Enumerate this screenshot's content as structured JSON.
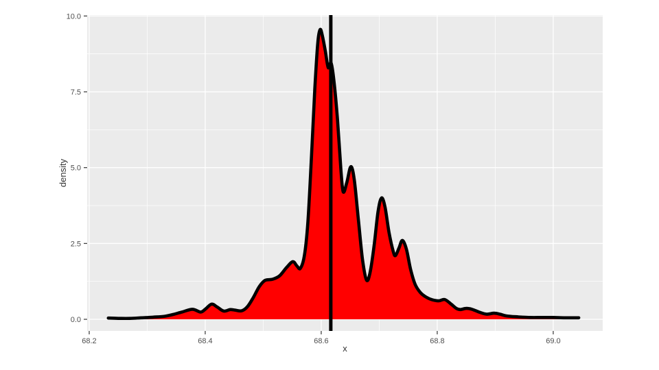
{
  "chart_data": {
    "type": "area",
    "subtype": "density-plot",
    "title": "",
    "xlabel": "x",
    "ylabel": "density",
    "legend": "none",
    "grid": "on",
    "x_ticks": {
      "values": [
        68.2,
        68.4,
        68.6,
        68.8,
        69.0
      ],
      "labels": [
        "68.2",
        "68.4",
        "68.6",
        "68.8",
        "69.0"
      ]
    },
    "y_ticks": {
      "values": [
        0.0,
        2.5,
        5.0,
        7.5,
        10.0
      ],
      "labels": [
        "0.0",
        "2.5",
        "5.0",
        "7.5",
        "10.0"
      ]
    },
    "x_minor": [
      68.3,
      68.5,
      68.7,
      68.9
    ],
    "y_minor": [
      1.25,
      3.75,
      6.25,
      8.75
    ],
    "xlim": [
      68.1965,
      69.0853
    ],
    "ylim": [
      -0.384,
      10.03
    ],
    "vline_x": 68.6165,
    "colors": {
      "fill": "#FF0000",
      "line": "#000000",
      "vline": "#000000",
      "panel_bg": "#EBEBEB",
      "gridline": "#FFFFFF",
      "tick_mark": "#333333",
      "tick_label": "#4D4D4D",
      "axis_title": "#333333",
      "outer_bg": "#FFFFFF"
    },
    "series": [
      {
        "name": "density",
        "points": [
          [
            68.233,
            0.04
          ],
          [
            68.25,
            0.03
          ],
          [
            68.27,
            0.03
          ],
          [
            68.29,
            0.05
          ],
          [
            68.31,
            0.07
          ],
          [
            68.33,
            0.1
          ],
          [
            68.345,
            0.16
          ],
          [
            68.36,
            0.24
          ],
          [
            68.378,
            0.33
          ],
          [
            68.392,
            0.24
          ],
          [
            68.4,
            0.33
          ],
          [
            68.411,
            0.5
          ],
          [
            68.421,
            0.4
          ],
          [
            68.432,
            0.27
          ],
          [
            68.443,
            0.32
          ],
          [
            68.452,
            0.3
          ],
          [
            68.463,
            0.28
          ],
          [
            68.473,
            0.42
          ],
          [
            68.483,
            0.72
          ],
          [
            68.493,
            1.07
          ],
          [
            68.503,
            1.28
          ],
          [
            68.516,
            1.32
          ],
          [
            68.528,
            1.43
          ],
          [
            68.54,
            1.7
          ],
          [
            68.551,
            1.9
          ],
          [
            68.558,
            1.76
          ],
          [
            68.564,
            1.68
          ],
          [
            68.571,
            2.1
          ],
          [
            68.577,
            3.2
          ],
          [
            68.583,
            5.3
          ],
          [
            68.589,
            7.6
          ],
          [
            68.594,
            9.1
          ],
          [
            68.598,
            9.55
          ],
          [
            68.602,
            9.35
          ],
          [
            68.607,
            8.85
          ],
          [
            68.612,
            8.3
          ],
          [
            68.617,
            8.45
          ],
          [
            68.622,
            7.85
          ],
          [
            68.628,
            6.6
          ],
          [
            68.634,
            4.9
          ],
          [
            68.638,
            4.2
          ],
          [
            68.644,
            4.5
          ],
          [
            68.651,
            5.03
          ],
          [
            68.657,
            4.6
          ],
          [
            68.664,
            3.3
          ],
          [
            68.671,
            2.0
          ],
          [
            68.678,
            1.3
          ],
          [
            68.684,
            1.52
          ],
          [
            68.691,
            2.4
          ],
          [
            68.698,
            3.55
          ],
          [
            68.704,
            4.0
          ],
          [
            68.71,
            3.7
          ],
          [
            68.717,
            2.85
          ],
          [
            68.724,
            2.25
          ],
          [
            68.728,
            2.1
          ],
          [
            68.734,
            2.35
          ],
          [
            68.74,
            2.6
          ],
          [
            68.747,
            2.3
          ],
          [
            68.754,
            1.65
          ],
          [
            68.762,
            1.15
          ],
          [
            68.771,
            0.88
          ],
          [
            68.781,
            0.73
          ],
          [
            68.792,
            0.64
          ],
          [
            68.803,
            0.61
          ],
          [
            68.813,
            0.65
          ],
          [
            68.824,
            0.5
          ],
          [
            68.833,
            0.36
          ],
          [
            68.84,
            0.32
          ],
          [
            68.85,
            0.36
          ],
          [
            68.86,
            0.33
          ],
          [
            68.872,
            0.24
          ],
          [
            68.885,
            0.17
          ],
          [
            68.898,
            0.2
          ],
          [
            68.908,
            0.17
          ],
          [
            68.92,
            0.11
          ],
          [
            68.94,
            0.08
          ],
          [
            68.96,
            0.06
          ],
          [
            68.98,
            0.06
          ],
          [
            69.0,
            0.06
          ],
          [
            69.02,
            0.05
          ],
          [
            69.044,
            0.05
          ]
        ]
      }
    ]
  }
}
